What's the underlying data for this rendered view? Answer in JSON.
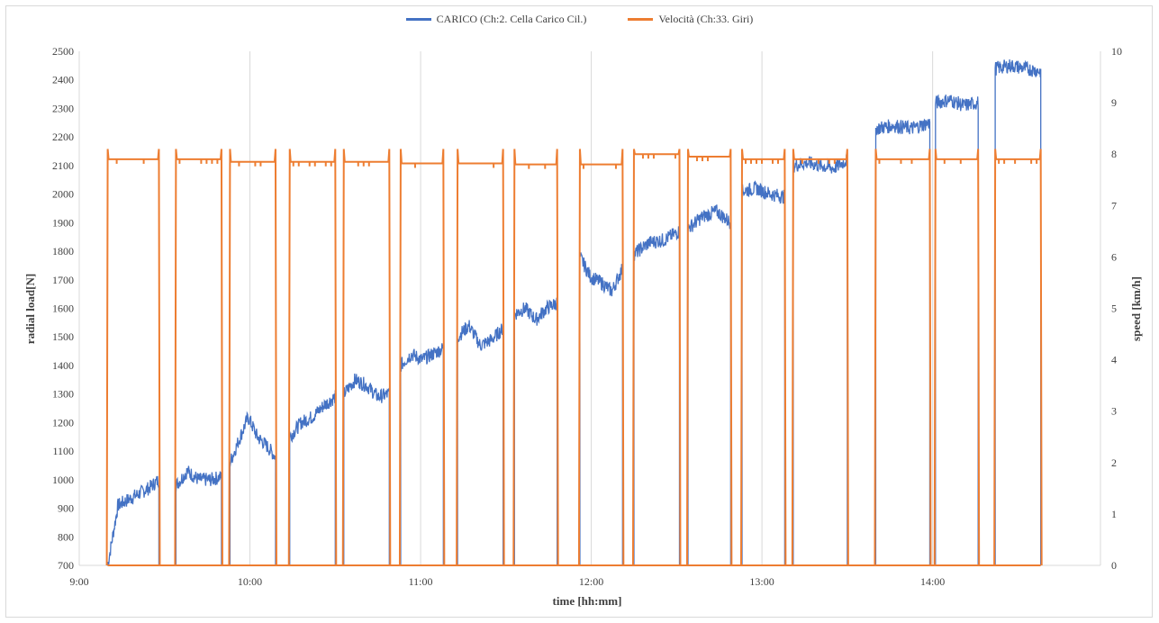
{
  "chart_data": {
    "type": "line",
    "legend": {
      "placement": "top-center",
      "entries": [
        "CARICO (Ch:2. Cella Carico Cil.)",
        "Velocità (Ch:33. Giri)"
      ]
    },
    "xlabel": "time [hh:mm]",
    "ylabel_left": "radial load[N]",
    "ylabel_right": "speed [km/h]",
    "x_ticks": [
      "9:00",
      "10:00",
      "11:00",
      "12:00",
      "13:00",
      "14:00"
    ],
    "xlim": [
      "9:00",
      "14:59"
    ],
    "ylim_left": [
      700,
      2500
    ],
    "ylim_right": [
      0,
      10
    ],
    "y_ticks_left": [
      700,
      800,
      900,
      1000,
      1100,
      1200,
      1300,
      1400,
      1500,
      1600,
      1700,
      1800,
      1900,
      2000,
      2100,
      2200,
      2300,
      2400,
      2500
    ],
    "y_ticks_right": [
      0,
      1,
      2,
      3,
      4,
      5,
      6,
      7,
      8,
      9,
      10
    ],
    "grid": "vertical",
    "colors": {
      "load": "#4472C4",
      "speed": "#ED7D31"
    },
    "series": [
      {
        "name": "CARICO (Ch:2. Cella Carico Cil.)",
        "axis": "left",
        "segments": [
          {
            "start": "9:10",
            "end": "9:28",
            "values": [
              700,
              910,
              930,
              950,
              970,
              1000
            ]
          },
          {
            "start": "9:34",
            "end": "9:50",
            "values": [
              980,
              1030,
              1000,
              1000,
              1010
            ]
          },
          {
            "start": "9:53",
            "end": "10:09",
            "values": [
              1060,
              1140,
              1220,
              1150,
              1120,
              1080
            ]
          },
          {
            "start": "10:14",
            "end": "10:30",
            "values": [
              1150,
              1200,
              1220,
              1260,
              1290
            ]
          },
          {
            "start": "10:33",
            "end": "10:49",
            "values": [
              1300,
              1350,
              1330,
              1290,
              1300
            ]
          },
          {
            "start": "10:53",
            "end": "11:08",
            "values": [
              1400,
              1440,
              1420,
              1440,
              1460
            ]
          },
          {
            "start": "11:13",
            "end": "11:29",
            "values": [
              1500,
              1540,
              1470,
              1490,
              1530
            ]
          },
          {
            "start": "11:33",
            "end": "11:48",
            "values": [
              1580,
              1600,
              1560,
              1600,
              1620
            ]
          },
          {
            "start": "11:56",
            "end": "12:11",
            "values": [
              1780,
              1710,
              1690,
              1660,
              1740
            ]
          },
          {
            "start": "12:15",
            "end": "12:31",
            "values": [
              1790,
              1830,
              1840,
              1870
            ]
          },
          {
            "start": "12:34",
            "end": "12:49",
            "values": [
              1880,
              1920,
              1940,
              1900
            ]
          },
          {
            "start": "12:53",
            "end": "13:08",
            "values": [
              2010,
              2020,
              2000,
              1990
            ]
          },
          {
            "start": "13:11",
            "end": "13:30",
            "values": [
              2100,
              2110,
              2100,
              2090,
              2120
            ]
          },
          {
            "start": "13:40",
            "end": "13:59",
            "values": [
              2230,
              2240,
              2230,
              2250
            ]
          },
          {
            "start": "14:01",
            "end": "14:16",
            "values": [
              2320,
              2330,
              2310,
              2320
            ]
          },
          {
            "start": "14:22",
            "end": "14:38",
            "values": [
              2440,
              2450,
              2440,
              2430
            ]
          }
        ]
      },
      {
        "name": "Velocità (Ch:33. Giri)",
        "axis": "right",
        "on_value": 7.85,
        "segments": [
          {
            "start": "9:10",
            "end": "9:28",
            "speed": 7.9
          },
          {
            "start": "9:34",
            "end": "9:50",
            "speed": 7.9
          },
          {
            "start": "9:53",
            "end": "10:09",
            "speed": 7.85
          },
          {
            "start": "10:14",
            "end": "10:30",
            "speed": 7.85
          },
          {
            "start": "10:33",
            "end": "10:49",
            "speed": 7.85
          },
          {
            "start": "10:53",
            "end": "11:08",
            "speed": 7.82
          },
          {
            "start": "11:13",
            "end": "11:29",
            "speed": 7.82
          },
          {
            "start": "11:33",
            "end": "11:48",
            "speed": 7.8
          },
          {
            "start": "11:56",
            "end": "12:11",
            "speed": 7.8
          },
          {
            "start": "12:15",
            "end": "12:31",
            "speed": 8.0
          },
          {
            "start": "12:34",
            "end": "12:49",
            "speed": 7.95
          },
          {
            "start": "12:53",
            "end": "13:08",
            "speed": 7.9
          },
          {
            "start": "13:11",
            "end": "13:30",
            "speed": 7.9
          },
          {
            "start": "13:40",
            "end": "13:59",
            "speed": 7.9
          },
          {
            "start": "14:01",
            "end": "14:16",
            "speed": 7.9
          },
          {
            "start": "14:22",
            "end": "14:38",
            "speed": 7.9
          }
        ]
      }
    ]
  }
}
